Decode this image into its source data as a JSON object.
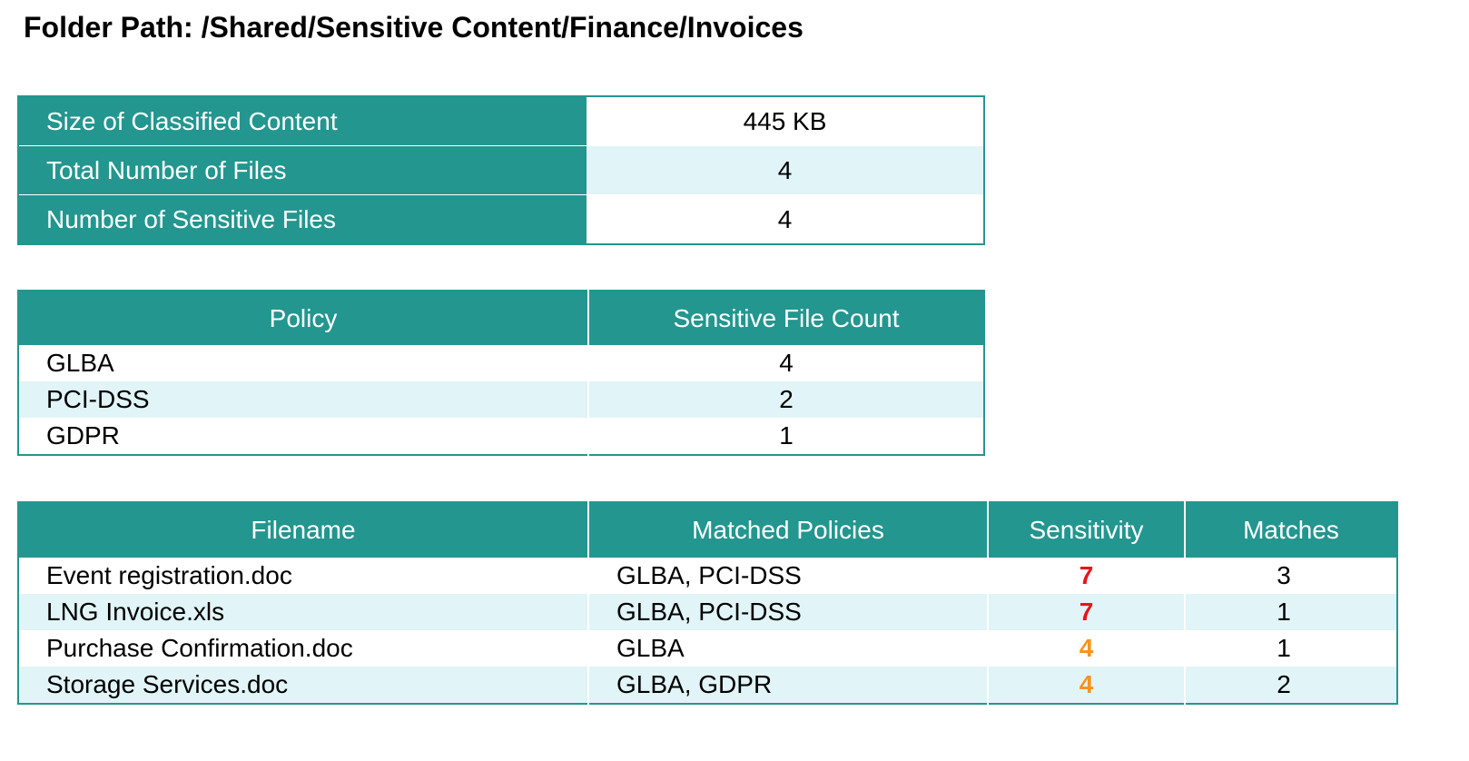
{
  "folder": {
    "label": "Folder Path: /Shared/Sensitive Content/Finance/Invoices"
  },
  "summary": {
    "rows": [
      {
        "label": "Size of Classified Content",
        "value": "445 KB"
      },
      {
        "label": "Total Number of Files",
        "value": "4"
      },
      {
        "label": "Number of Sensitive Files",
        "value": "4"
      }
    ]
  },
  "policies": {
    "headers": [
      "Policy",
      "Sensitive File Count"
    ],
    "rows": [
      {
        "policy": "GLBA",
        "count": "4"
      },
      {
        "policy": "PCI-DSS",
        "count": "2"
      },
      {
        "policy": "GDPR",
        "count": "1"
      }
    ]
  },
  "files": {
    "headers": [
      "Filename",
      "Matched Policies",
      "Sensitivity",
      "Matches"
    ],
    "rows": [
      {
        "filename": "Event registration.doc",
        "policies": "GLBA, PCI-DSS",
        "sensitivity": "7",
        "sensitivity_color": "#e8141c",
        "matches": "3"
      },
      {
        "filename": "LNG Invoice.xls",
        "policies": "GLBA, PCI-DSS",
        "sensitivity": "7",
        "sensitivity_color": "#e8141c",
        "matches": "1"
      },
      {
        "filename": "Purchase Confirmation.doc",
        "policies": "GLBA",
        "sensitivity": "4",
        "sensitivity_color": "#f7941d",
        "matches": "1"
      },
      {
        "filename": "Storage Services.doc",
        "policies": "GLBA, GDPR",
        "sensitivity": "4",
        "sensitivity_color": "#f7941d",
        "matches": "2"
      }
    ]
  },
  "colors": {
    "header_teal": "#23968f",
    "row_alt": "#e1f4f7",
    "sensitivity_high": "#e8141c",
    "sensitivity_medium": "#f7941d"
  }
}
